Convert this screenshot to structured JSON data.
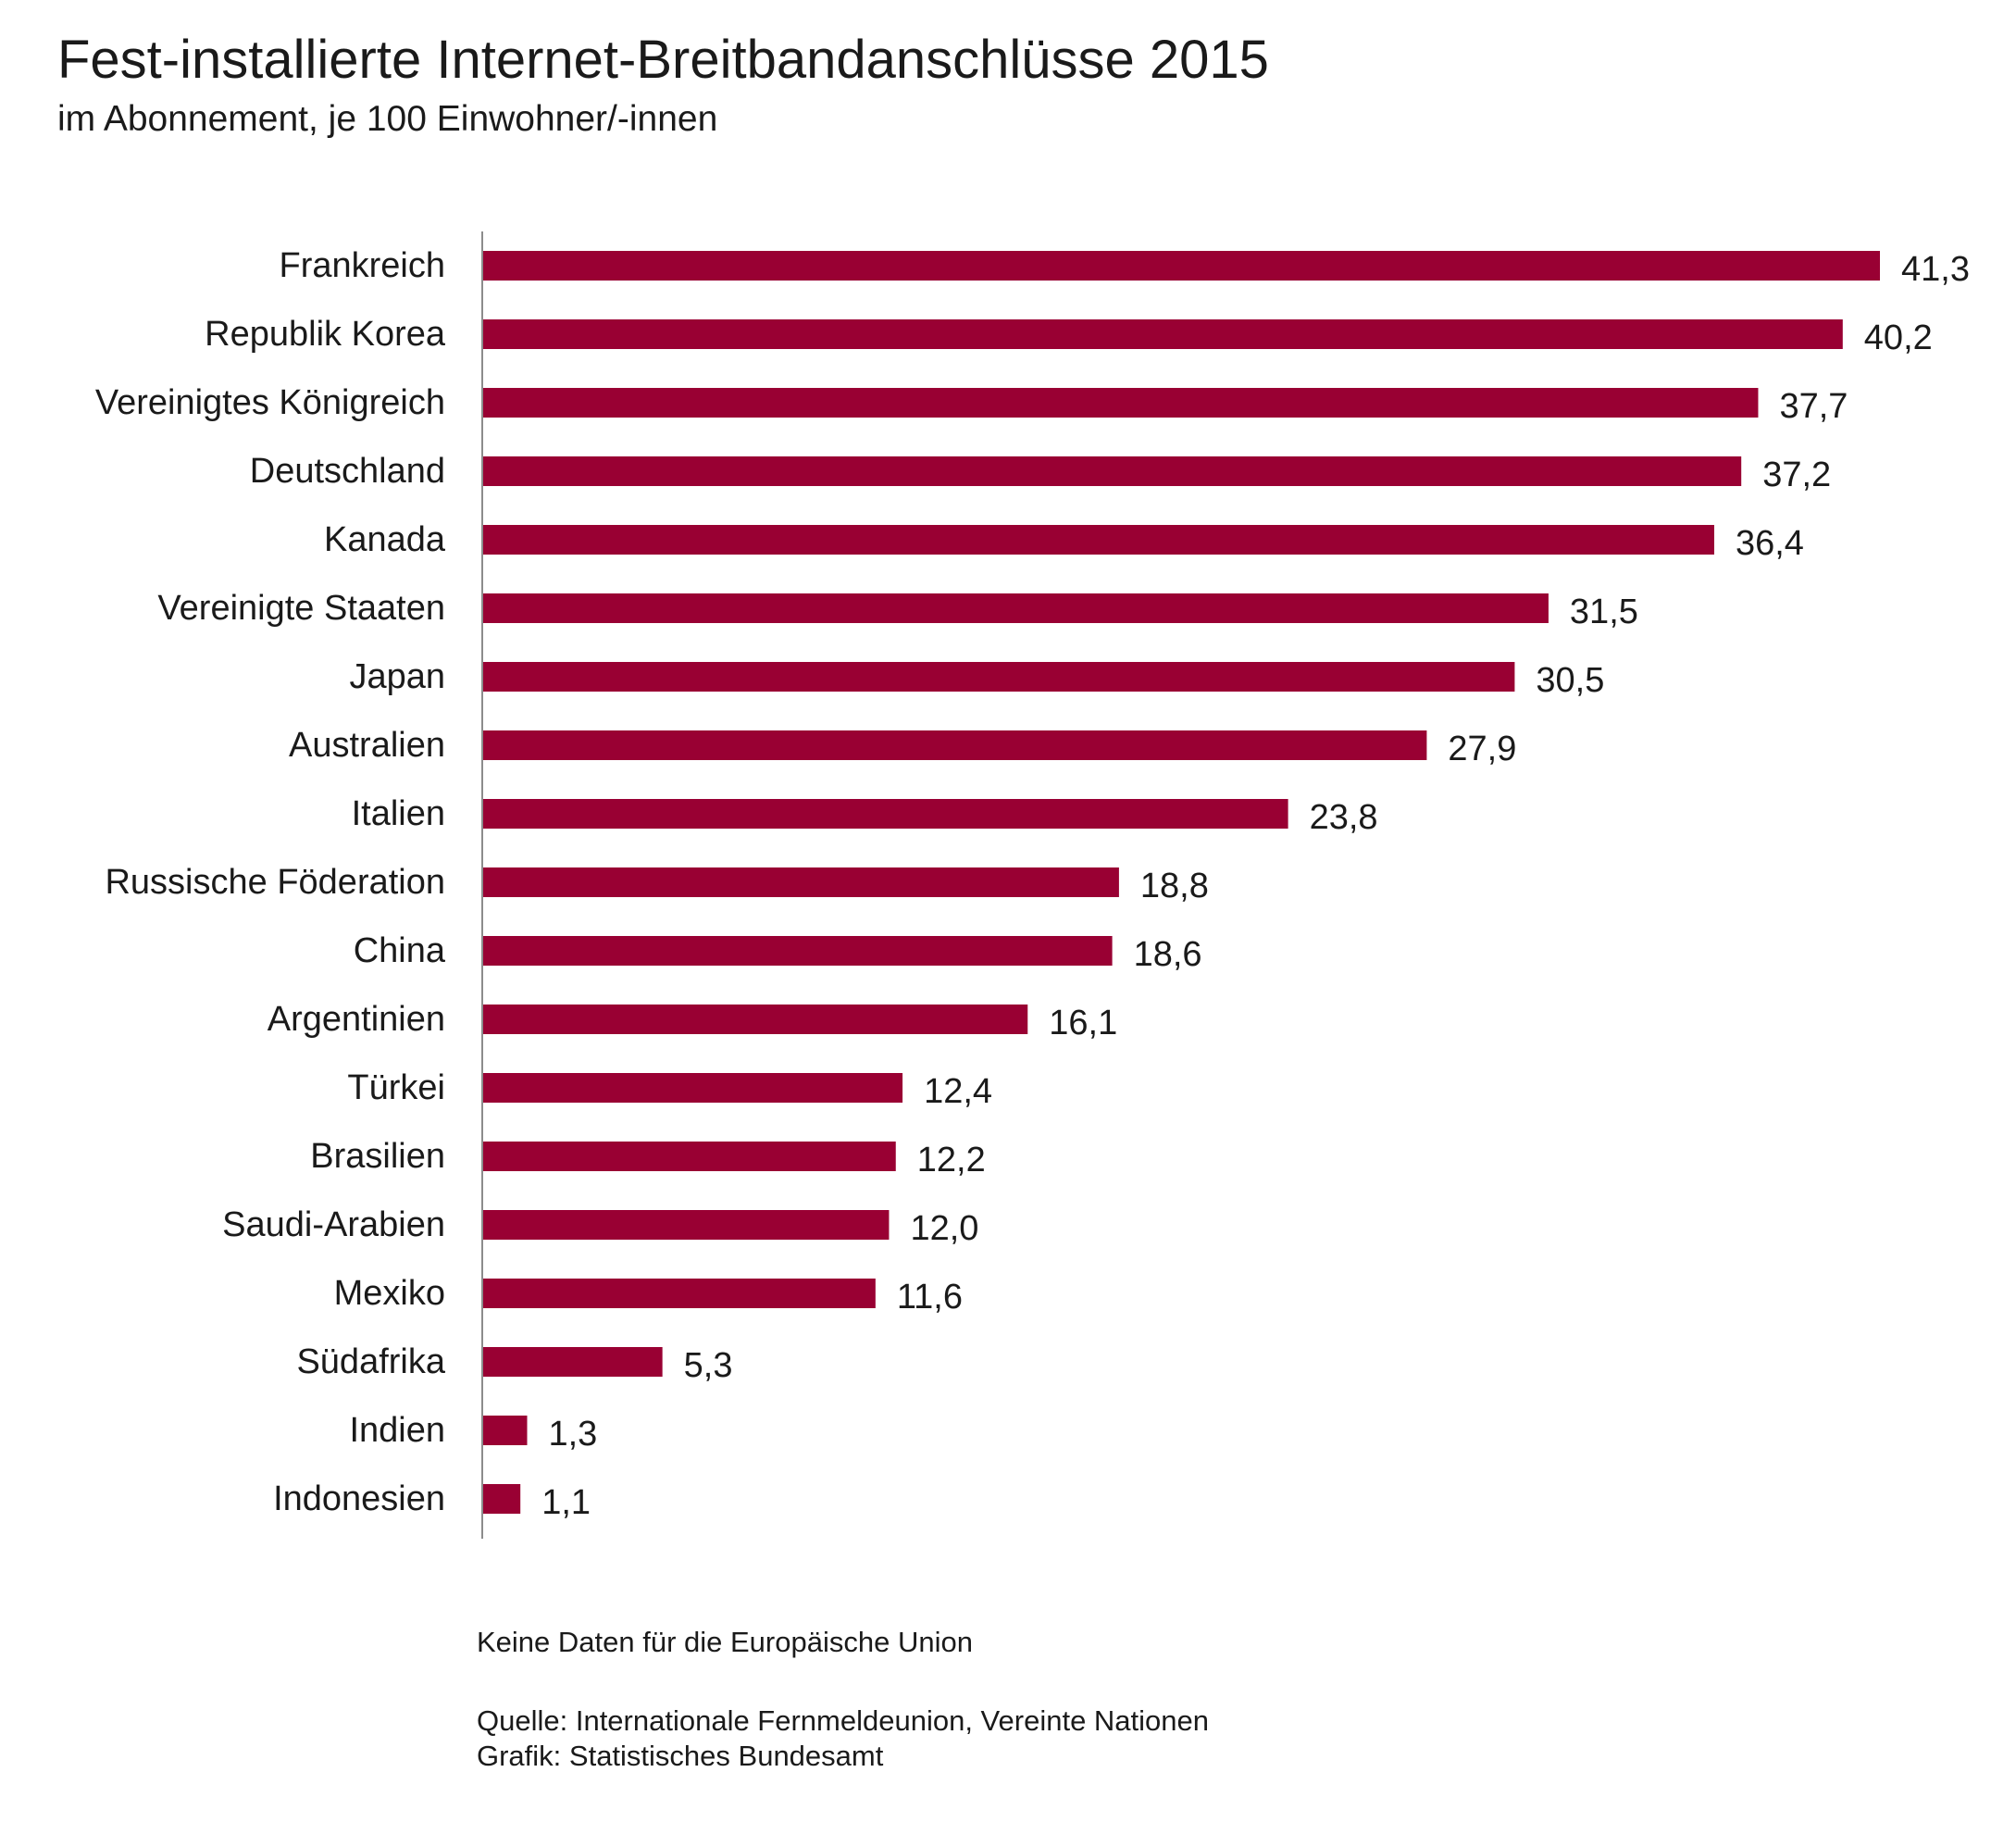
{
  "header": {
    "title": "Fest-installierte Internet-Breitbandanschlüsse 2015",
    "subtitle": "im Abonnement, je 100 Einwohner/-innen"
  },
  "colors": {
    "bar": "#990033",
    "axis": "#8c8c8c",
    "text": "#1a1a1a"
  },
  "chart_data": {
    "type": "bar",
    "orientation": "horizontal",
    "title": "Fest-installierte Internet-Breitbandanschlüsse 2015",
    "subtitle": "im Abonnement, je 100 Einwohner/-innen",
    "categories": [
      "Frankreich",
      "Republik Korea",
      "Vereinigtes Königreich",
      "Deutschland",
      "Kanada",
      "Vereinigte Staaten",
      "Japan",
      "Australien",
      "Italien",
      "Russische Föderation",
      "China",
      "Argentinien",
      "Türkei",
      "Brasilien",
      "Saudi-Arabien",
      "Mexiko",
      "Südafrika",
      "Indien",
      "Indonesien"
    ],
    "values": [
      41.3,
      40.2,
      37.7,
      37.2,
      36.4,
      31.5,
      30.5,
      27.9,
      23.8,
      18.8,
      18.6,
      16.1,
      12.4,
      12.2,
      12.0,
      11.6,
      5.3,
      1.3,
      1.1
    ],
    "value_labels": [
      "41,3",
      "40,2",
      "37,7",
      "37,2",
      "36,4",
      "31,5",
      "30,5",
      "27,9",
      "23,8",
      "18,8",
      "18,6",
      "16,1",
      "12,4",
      "12,2",
      "12,0",
      "11,6",
      "5,3",
      "1,3",
      "1,1"
    ],
    "xlabel": "",
    "ylabel": "",
    "xlim": [
      0,
      41.3
    ],
    "grid": false,
    "legend": "none"
  },
  "notes": {
    "no_data": "Keine Daten für die Europäische Union",
    "source": "Quelle: Internationale Fernmeldeunion, Vereinte Nationen",
    "graphic": "Grafik: Statistisches Bundesamt"
  }
}
